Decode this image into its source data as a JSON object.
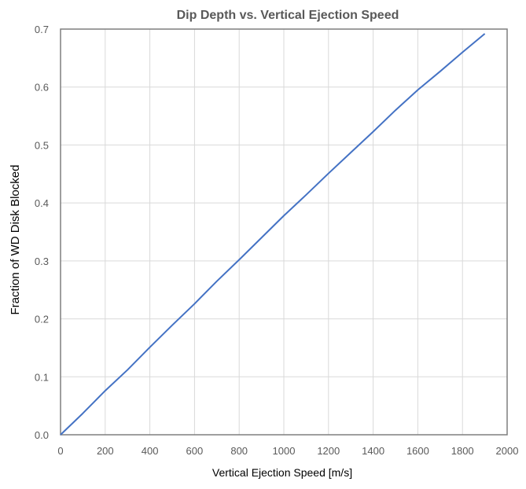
{
  "chart_data": {
    "type": "line",
    "title": "Dip Depth vs. Vertical Ejection Speed",
    "xlabel": "Vertical Ejection Speed [m/s]",
    "ylabel": "Fraction of WD Disk Blocked",
    "xlim": [
      0,
      2000
    ],
    "ylim": [
      0,
      0.7
    ],
    "x_ticks": [
      "0",
      "200",
      "400",
      "600",
      "800",
      "1000",
      "1200",
      "1400",
      "1600",
      "1800",
      "2000"
    ],
    "y_ticks": [
      "0.0",
      "0.1",
      "0.2",
      "0.3",
      "0.4",
      "0.5",
      "0.6",
      "0.7"
    ],
    "grid": true,
    "legend": "none",
    "series": [
      {
        "color": "#4472c4",
        "x": [
          0,
          100,
          200,
          300,
          400,
          500,
          600,
          700,
          800,
          900,
          1000,
          1100,
          1200,
          1300,
          1400,
          1500,
          1600,
          1700,
          1800,
          1900
        ],
        "y": [
          0.0,
          0.037,
          0.076,
          0.112,
          0.151,
          0.189,
          0.226,
          0.265,
          0.302,
          0.34,
          0.378,
          0.414,
          0.451,
          0.487,
          0.523,
          0.56,
          0.595,
          0.627,
          0.66,
          0.692
        ]
      }
    ]
  }
}
